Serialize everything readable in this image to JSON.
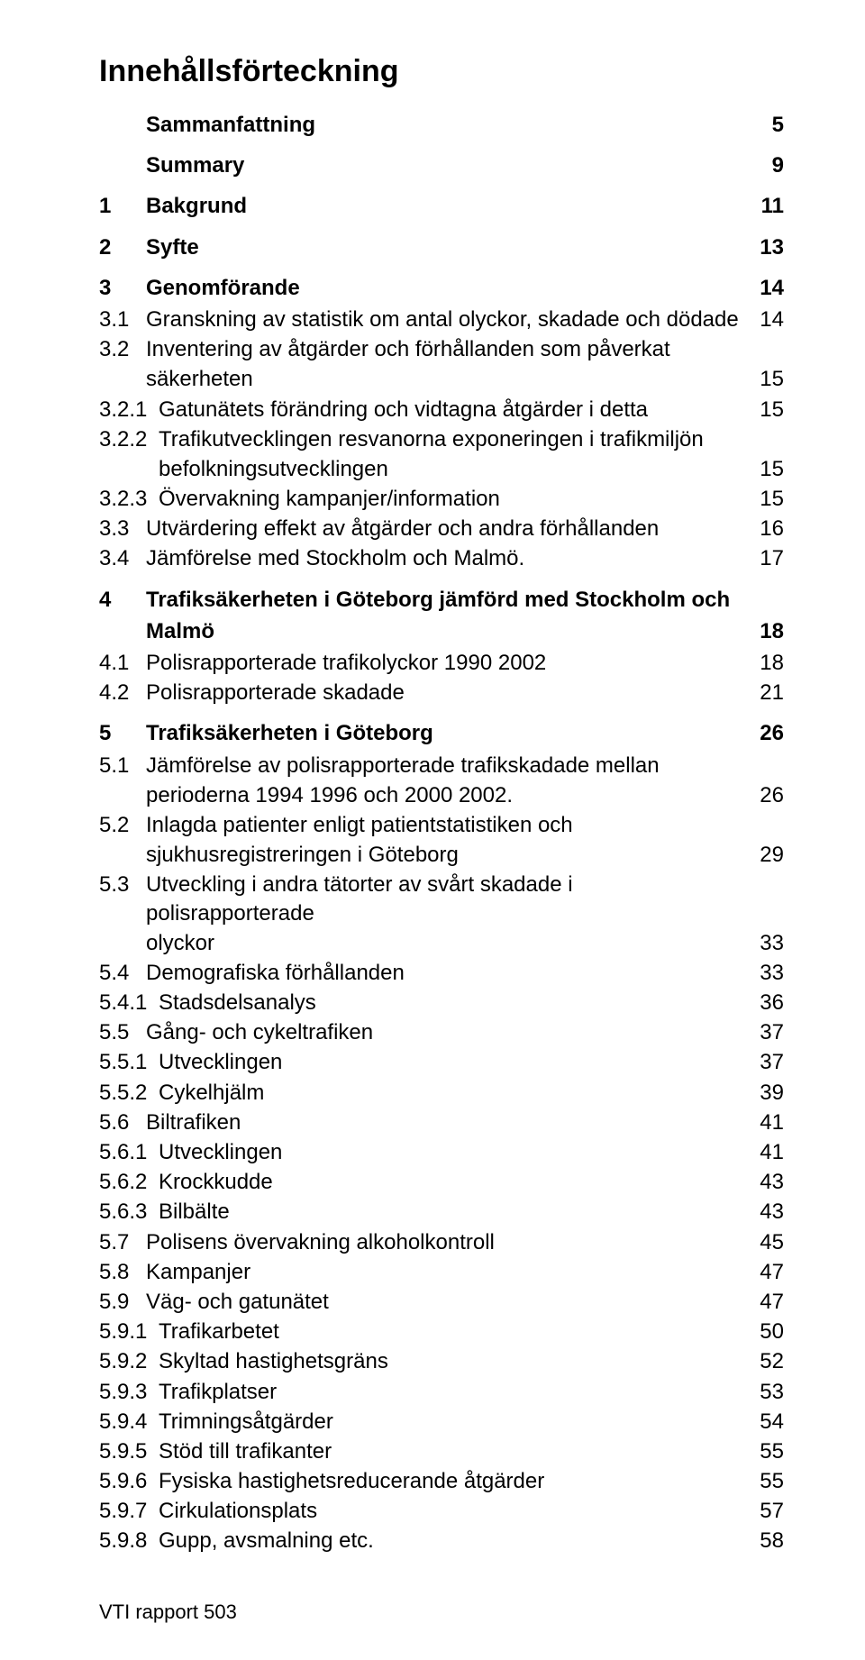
{
  "title": "Innehållsförteckning",
  "footer": "VTI rapport 503",
  "entries": [
    {
      "level": 0,
      "num": "",
      "text": "Sammanfattning",
      "page": "5",
      "first": true
    },
    {
      "level": 0,
      "num": "",
      "text": "Summary",
      "page": "9"
    },
    {
      "level": 0,
      "num": "1",
      "text": "Bakgrund",
      "page": "11"
    },
    {
      "level": 0,
      "num": "2",
      "text": "Syfte",
      "page": "13"
    },
    {
      "level": 0,
      "num": "3",
      "text": "Genomförande",
      "page": "14"
    },
    {
      "level": 1,
      "num": "3.1",
      "text": "Granskning av statistik om antal olyckor, skadade och dödade",
      "page": "14"
    },
    {
      "level": 1,
      "num": "3.2",
      "text": "Inventering av åtgärder och förhållanden som påverkat",
      "page": ""
    },
    {
      "level": 1,
      "num": "",
      "text": "säkerheten",
      "page": "15",
      "cont": true
    },
    {
      "level": 2,
      "num": "3.2.1",
      "text": "Gatunätets förändring och vidtagna åtgärder i detta",
      "page": "15"
    },
    {
      "level": 2,
      "num": "3.2.2",
      "text": "Trafikutvecklingen resvanorna exponeringen i trafikmiljön",
      "page": ""
    },
    {
      "level": 2,
      "num": "",
      "text": "befolkningsutvecklingen",
      "page": "15",
      "cont": true,
      "contLevel": 2
    },
    {
      "level": 2,
      "num": "3.2.3",
      "text": "Övervakning kampanjer/information",
      "page": "15"
    },
    {
      "level": 1,
      "num": "3.3",
      "text": "Utvärdering effekt av åtgärder och andra förhållanden",
      "page": "16"
    },
    {
      "level": 1,
      "num": "3.4",
      "text": "Jämförelse med Stockholm och Malmö.",
      "page": "17"
    },
    {
      "level": 0,
      "num": "4",
      "text": "Trafiksäkerheten i Göteborg jämförd med Stockholm och",
      "page": ""
    },
    {
      "level": 0,
      "num": "",
      "text": "Malmö",
      "page": "18",
      "cont": true,
      "bold": true
    },
    {
      "level": 1,
      "num": "4.1",
      "text": "Polisrapporterade trafikolyckor 1990 2002",
      "page": "18"
    },
    {
      "level": 1,
      "num": "4.2",
      "text": "Polisrapporterade skadade",
      "page": "21"
    },
    {
      "level": 0,
      "num": "5",
      "text": "Trafiksäkerheten i Göteborg",
      "page": "26"
    },
    {
      "level": 1,
      "num": "5.1",
      "text": "Jämförelse av polisrapporterade trafikskadade mellan",
      "page": ""
    },
    {
      "level": 1,
      "num": "",
      "text": "perioderna 1994 1996 och 2000 2002.",
      "page": "26",
      "cont": true
    },
    {
      "level": 1,
      "num": "5.2",
      "text": "Inlagda patienter enligt patientstatistiken och",
      "page": ""
    },
    {
      "level": 1,
      "num": "",
      "text": "sjukhusregistreringen i Göteborg",
      "page": "29",
      "cont": true
    },
    {
      "level": 1,
      "num": "5.3",
      "text": "Utveckling i andra tätorter av svårt skadade i polisrapporterade",
      "page": ""
    },
    {
      "level": 1,
      "num": "",
      "text": "olyckor",
      "page": "33",
      "cont": true
    },
    {
      "level": 1,
      "num": "5.4",
      "text": "Demografiska förhållanden",
      "page": "33"
    },
    {
      "level": 2,
      "num": "5.4.1",
      "text": "Stadsdelsanalys",
      "page": "36"
    },
    {
      "level": 1,
      "num": "5.5",
      "text": "Gång- och cykeltrafiken",
      "page": "37"
    },
    {
      "level": 2,
      "num": "5.5.1",
      "text": "Utvecklingen",
      "page": "37"
    },
    {
      "level": 2,
      "num": "5.5.2",
      "text": "Cykelhjälm",
      "page": "39"
    },
    {
      "level": 1,
      "num": "5.6",
      "text": "Biltrafiken",
      "page": "41"
    },
    {
      "level": 2,
      "num": "5.6.1",
      "text": "Utvecklingen",
      "page": "41"
    },
    {
      "level": 2,
      "num": "5.6.2",
      "text": "Krockkudde",
      "page": "43"
    },
    {
      "level": 2,
      "num": "5.6.3",
      "text": "Bilbälte",
      "page": "43"
    },
    {
      "level": 1,
      "num": "5.7",
      "text": "Polisens övervakning alkoholkontroll",
      "page": "45"
    },
    {
      "level": 1,
      "num": "5.8",
      "text": "Kampanjer",
      "page": "47"
    },
    {
      "level": 1,
      "num": "5.9",
      "text": "Väg- och gatunätet",
      "page": "47"
    },
    {
      "level": 2,
      "num": "5.9.1",
      "text": "Trafikarbetet",
      "page": "50"
    },
    {
      "level": 2,
      "num": "5.9.2",
      "text": "Skyltad hastighetsgräns",
      "page": "52"
    },
    {
      "level": 2,
      "num": "5.9.3",
      "text": "Trafikplatser",
      "page": "53"
    },
    {
      "level": 2,
      "num": "5.9.4",
      "text": "Trimningsåtgärder",
      "page": "54"
    },
    {
      "level": 2,
      "num": "5.9.5",
      "text": "Stöd till trafikanter",
      "page": "55"
    },
    {
      "level": 2,
      "num": "5.9.6",
      "text": "Fysiska hastighetsreducerande åtgärder",
      "page": "55"
    },
    {
      "level": 2,
      "num": "5.9.7",
      "text": "Cirkulationsplats",
      "page": "57"
    },
    {
      "level": 2,
      "num": "5.9.8",
      "text": "Gupp, avsmalning etc.",
      "page": "58"
    }
  ]
}
